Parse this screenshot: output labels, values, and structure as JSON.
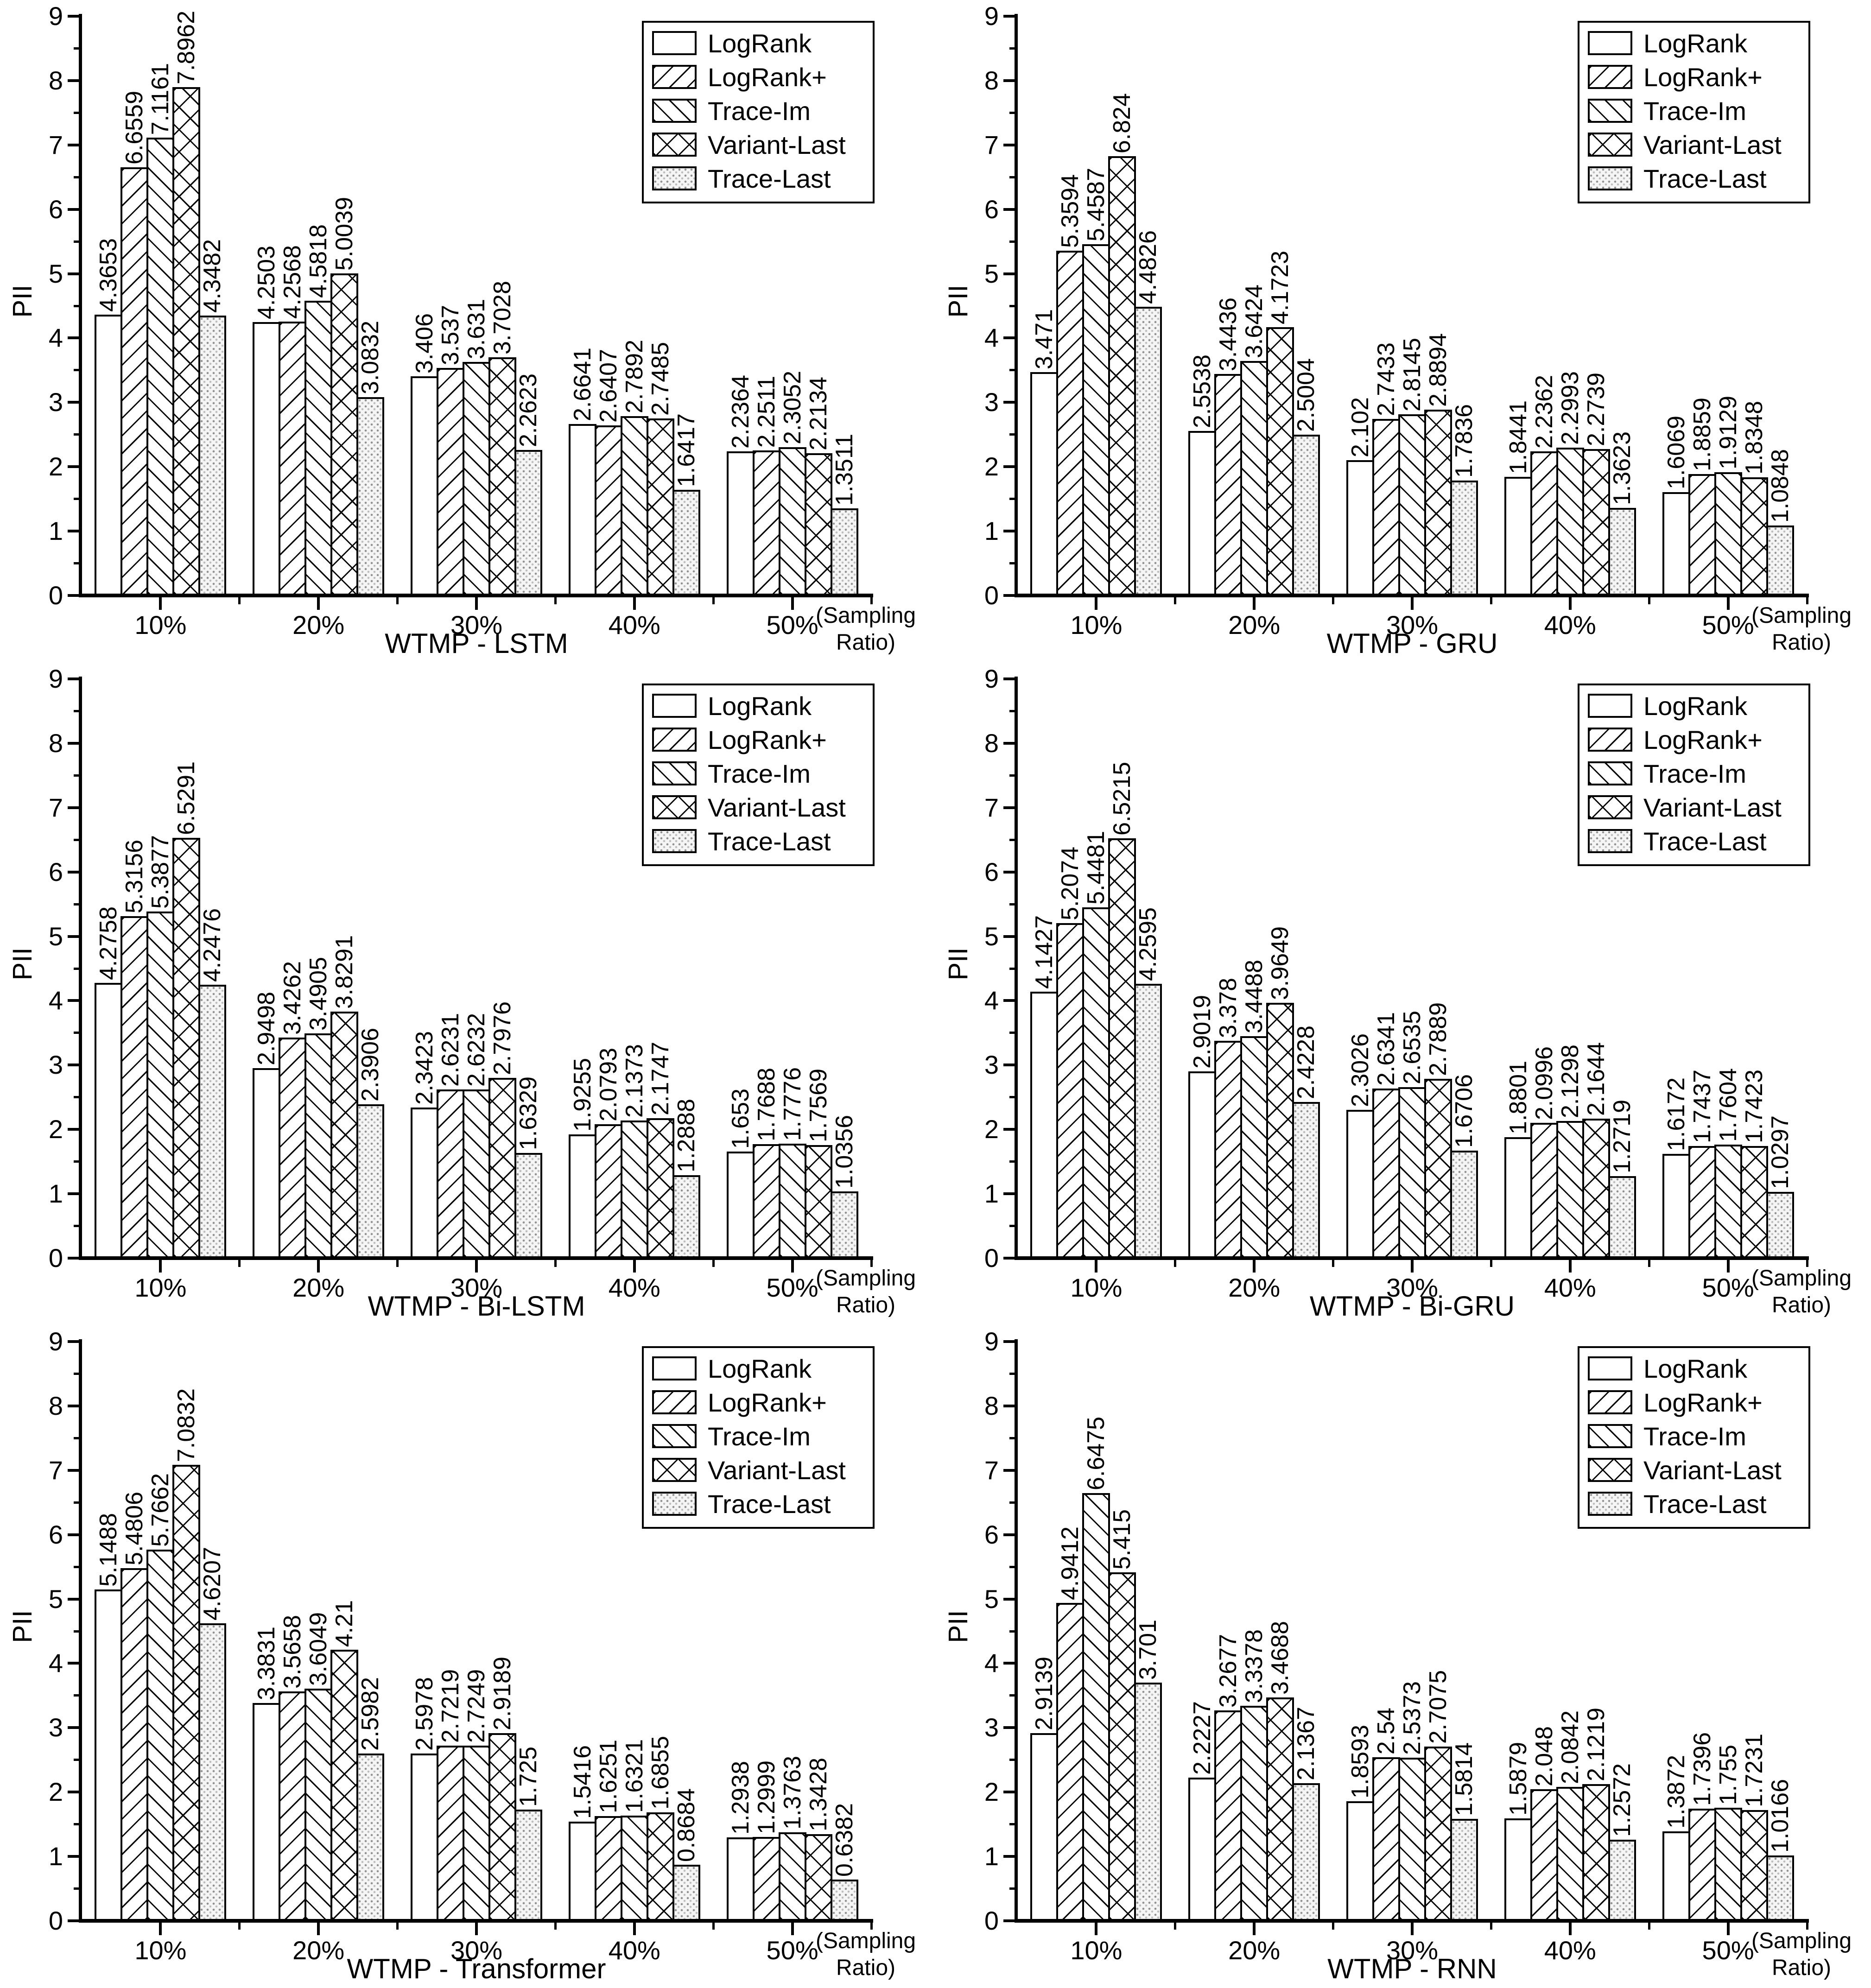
{
  "colors": {
    "ink": "#000000",
    "paper": "#ffffff",
    "stipple_dot": "#8f8f8f",
    "stipple_bg": "#f5f5f5"
  },
  "axes": {
    "ylabel": "PII",
    "ymin": 0,
    "ymax": 9,
    "tick_step": 1,
    "sampling_note_line1": "(Sampling",
    "sampling_note_line2": "Ratio)"
  },
  "legend": {
    "items": [
      "LogRank",
      "LogRank+",
      "Trace-Im",
      "Variant-Last",
      "Trace-Last"
    ]
  },
  "chart_data": [
    {
      "type": "bar",
      "title": "WTMP - LSTM",
      "ylabel": "PII",
      "xlabel": "(Sampling Ratio)",
      "ylim": [
        0,
        9
      ],
      "legend_position": "top-right",
      "categories": [
        "10%",
        "20%",
        "30%",
        "40%",
        "50%"
      ],
      "series": [
        {
          "name": "LogRank",
          "pattern": "none",
          "values": [
            "4.3653",
            "4.2503",
            "3.406",
            "2.6641",
            "2.2364"
          ]
        },
        {
          "name": "LogRank+",
          "pattern": "diag-up",
          "values": [
            "6.6559",
            "4.2568",
            "3.537",
            "2.6407",
            "2.2511"
          ]
        },
        {
          "name": "Trace-Im",
          "pattern": "diag-down",
          "values": [
            "7.1161",
            "4.5818",
            "3.631",
            "2.7892",
            "2.3052"
          ]
        },
        {
          "name": "Variant-Last",
          "pattern": "cross",
          "values": [
            "7.8962",
            "5.0039",
            "3.7028",
            "2.7485",
            "2.2134"
          ]
        },
        {
          "name": "Trace-Last",
          "pattern": "dots",
          "values": [
            "4.3482",
            "3.0832",
            "2.2623",
            "1.6417",
            "1.3511"
          ]
        }
      ]
    },
    {
      "type": "bar",
      "title": "WTMP - GRU",
      "ylabel": "PII",
      "xlabel": "(Sampling Ratio)",
      "ylim": [
        0,
        9
      ],
      "legend_position": "top-right",
      "categories": [
        "10%",
        "20%",
        "30%",
        "40%",
        "50%"
      ],
      "series": [
        {
          "name": "LogRank",
          "pattern": "none",
          "values": [
            "3.471",
            "2.5538",
            "2.102",
            "1.8441",
            "1.6069"
          ]
        },
        {
          "name": "LogRank+",
          "pattern": "diag-up",
          "values": [
            "5.3594",
            "3.4436",
            "2.7433",
            "2.2362",
            "1.8859"
          ]
        },
        {
          "name": "Trace-Im",
          "pattern": "diag-down",
          "values": [
            "5.4587",
            "3.6424",
            "2.8145",
            "2.2993",
            "1.9129"
          ]
        },
        {
          "name": "Variant-Last",
          "pattern": "cross",
          "values": [
            "6.824",
            "4.1723",
            "2.8894",
            "2.2739",
            "1.8348"
          ]
        },
        {
          "name": "Trace-Last",
          "pattern": "dots",
          "values": [
            "4.4826",
            "2.5004",
            "1.7836",
            "1.3623",
            "1.0848"
          ]
        }
      ]
    },
    {
      "type": "bar",
      "title": "WTMP - Bi-LSTM",
      "ylabel": "PII",
      "xlabel": "(Sampling Ratio)",
      "ylim": [
        0,
        9
      ],
      "legend_position": "top-right",
      "categories": [
        "10%",
        "20%",
        "30%",
        "40%",
        "50%"
      ],
      "series": [
        {
          "name": "LogRank",
          "pattern": "none",
          "values": [
            "4.2758",
            "2.9498",
            "2.3423",
            "1.9255",
            "1.653"
          ]
        },
        {
          "name": "LogRank+",
          "pattern": "diag-up",
          "values": [
            "5.3156",
            "3.4262",
            "2.6231",
            "2.0793",
            "1.7688"
          ]
        },
        {
          "name": "Trace-Im",
          "pattern": "diag-down",
          "values": [
            "5.3877",
            "3.4905",
            "2.6232",
            "2.1373",
            "1.7776"
          ]
        },
        {
          "name": "Variant-Last",
          "pattern": "cross",
          "values": [
            "6.5291",
            "3.8291",
            "2.7976",
            "2.1747",
            "1.7569"
          ]
        },
        {
          "name": "Trace-Last",
          "pattern": "dots",
          "values": [
            "4.2476",
            "2.3906",
            "1.6329",
            "1.2888",
            "1.0356"
          ]
        }
      ]
    },
    {
      "type": "bar",
      "title": "WTMP - Bi-GRU",
      "ylabel": "PII",
      "xlabel": "(Sampling Ratio)",
      "ylim": [
        0,
        9
      ],
      "legend_position": "top-right",
      "categories": [
        "10%",
        "20%",
        "30%",
        "40%",
        "50%"
      ],
      "series": [
        {
          "name": "LogRank",
          "pattern": "none",
          "values": [
            "4.1427",
            "2.9019",
            "2.3026",
            "1.8801",
            "1.6172"
          ]
        },
        {
          "name": "LogRank+",
          "pattern": "diag-up",
          "values": [
            "5.2074",
            "3.378",
            "2.6341",
            "2.0996",
            "1.7437"
          ]
        },
        {
          "name": "Trace-Im",
          "pattern": "diag-down",
          "values": [
            "5.4481",
            "3.4488",
            "2.6535",
            "2.1298",
            "1.7604"
          ]
        },
        {
          "name": "Variant-Last",
          "pattern": "cross",
          "values": [
            "6.5215",
            "3.9649",
            "2.7889",
            "2.1644",
            "1.7423"
          ]
        },
        {
          "name": "Trace-Last",
          "pattern": "dots",
          "values": [
            "4.2595",
            "2.4228",
            "1.6706",
            "1.2719",
            "1.0297"
          ]
        }
      ]
    },
    {
      "type": "bar",
      "title": "WTMP - Transformer",
      "ylabel": "PII",
      "xlabel": "(Sampling Ratio)",
      "ylim": [
        0,
        9
      ],
      "legend_position": "top-right",
      "categories": [
        "10%",
        "20%",
        "30%",
        "40%",
        "50%"
      ],
      "series": [
        {
          "name": "LogRank",
          "pattern": "none",
          "values": [
            "5.1488",
            "3.3831",
            "2.5978",
            "1.5416",
            "1.2938"
          ]
        },
        {
          "name": "LogRank+",
          "pattern": "diag-up",
          "values": [
            "5.4806",
            "3.5658",
            "2.7219",
            "1.6251",
            "1.2999"
          ]
        },
        {
          "name": "Trace-Im",
          "pattern": "diag-down",
          "values": [
            "5.7662",
            "3.6049",
            "2.7249",
            "1.6321",
            "1.3763"
          ]
        },
        {
          "name": "Variant-Last",
          "pattern": "cross",
          "values": [
            "7.0832",
            "4.21",
            "2.9189",
            "1.6855",
            "1.3428"
          ]
        },
        {
          "name": "Trace-Last",
          "pattern": "dots",
          "values": [
            "4.6207",
            "2.5982",
            "1.725",
            "0.8684",
            "0.6382"
          ]
        }
      ]
    },
    {
      "type": "bar",
      "title": "WTMP - RNN",
      "ylabel": "PII",
      "xlabel": "(Sampling Ratio)",
      "ylim": [
        0,
        9
      ],
      "legend_position": "top-right",
      "categories": [
        "10%",
        "20%",
        "30%",
        "40%",
        "50%"
      ],
      "series": [
        {
          "name": "LogRank",
          "pattern": "none",
          "values": [
            "2.9139",
            "2.2227",
            "1.8593",
            "1.5879",
            "1.3872"
          ]
        },
        {
          "name": "LogRank+",
          "pattern": "diag-up",
          "values": [
            "4.9412",
            "3.2677",
            "2.54",
            "2.048",
            "1.7396"
          ]
        },
        {
          "name": "Trace-Im",
          "pattern": "diag-down",
          "values": [
            "6.6475",
            "3.3378",
            "2.5373",
            "2.0842",
            "1.755"
          ]
        },
        {
          "name": "Variant-Last",
          "pattern": "cross",
          "values": [
            "5.415",
            "3.4688",
            "2.7075",
            "2.1219",
            "1.7231"
          ]
        },
        {
          "name": "Trace-Last",
          "pattern": "dots",
          "values": [
            "3.701",
            "2.1367",
            "1.5814",
            "1.2572",
            "1.0166"
          ]
        }
      ]
    }
  ]
}
